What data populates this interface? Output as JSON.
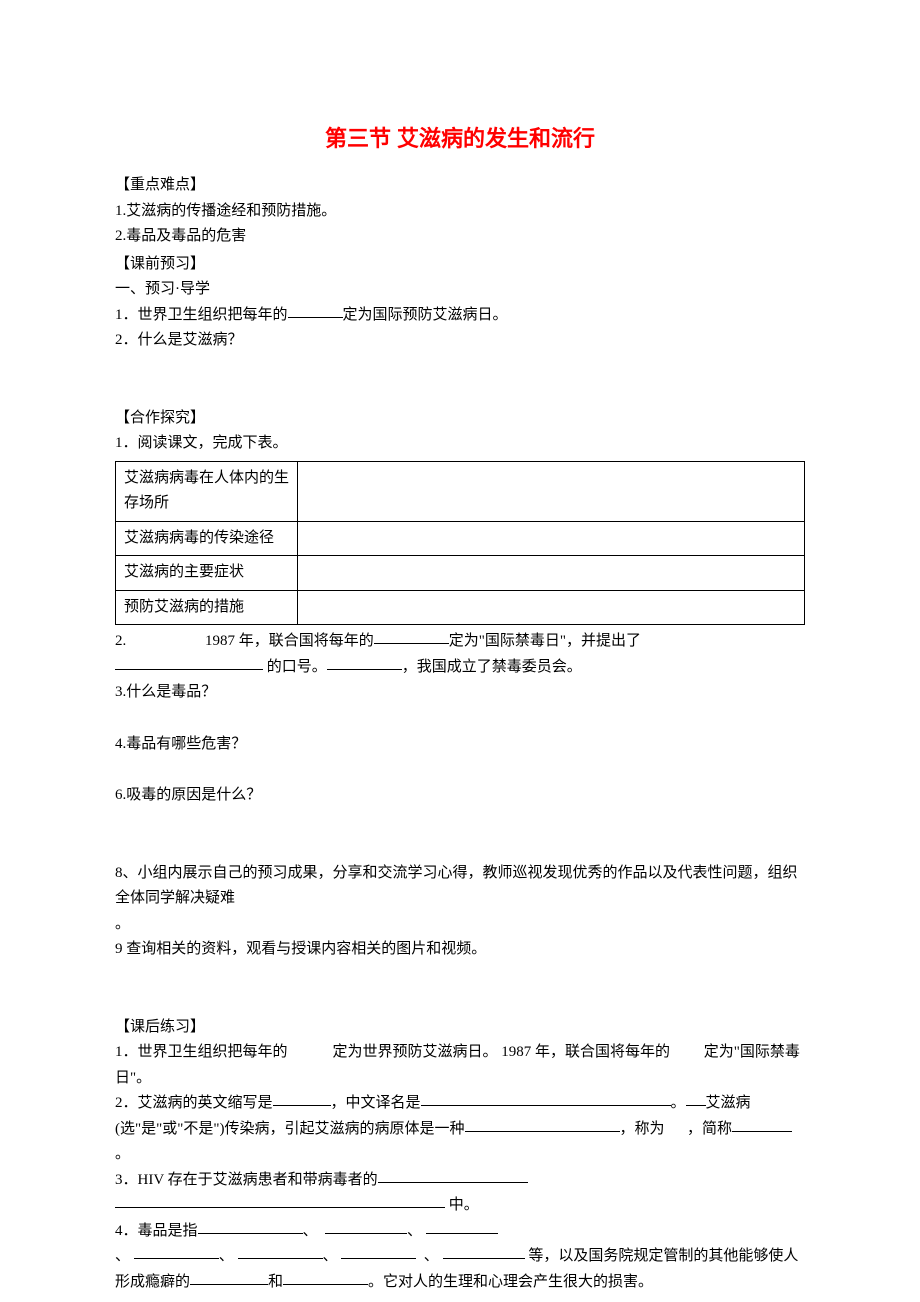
{
  "title": "第三节  艾滋病的发生和流行",
  "sections": {
    "key_points": {
      "heading": "【重点难点】",
      "items": [
        "1.艾滋病的传播途经和预防措施。",
        "2.毒品及毒品的危害"
      ]
    },
    "preview": {
      "heading": "【课前预习】",
      "subheading": "一、预习·导学",
      "q1_pre": "1．世界卫生组织把每年的",
      "q1_post": "定为国际预防艾滋病日。",
      "q2": "2．什么是艾滋病？"
    },
    "cooperative": {
      "heading": "【合作探究】",
      "q1": "1．阅读课文，完成下表。",
      "table_rows": [
        "艾滋病病毒在人体内的生存场所",
        "艾滋病病毒的传染途径",
        "艾滋病的主要症状",
        "预防艾滋病的措施"
      ],
      "q2_pre": "2.",
      "q2_mid1": "1987 年，联合国将每年的",
      "q2_mid2": "定为\"国际禁毒日\"，并提出了",
      "q2_mid3": "的口号。",
      "q2_post": "，我国成立了禁毒委员会。",
      "q3": "3.什么是毒品？",
      "q4": "4.毒品有哪些危害？",
      "q6": "6.吸毒的原因是什么？",
      "q8": "8、小组内展示自己的预习成果，分享和交流学习心得，教师巡视发现优秀的作品以及代表性问题，组织全体同学解决疑难",
      "q8_period": "。",
      "q9": "9 查询相关的资料，观看与授课内容相关的图片和视频。"
    },
    "practice": {
      "heading": "【课后练习】",
      "p1_a": "1．世界卫生组织把每年的",
      "p1_b": "定为世界预防艾滋病日。 1987 年，联合国将每年的",
      "p1_c": "定为\"国际禁毒日\"。",
      "p2_a": "2．艾滋病的英文缩写是",
      "p2_b": "，中文译名是",
      "p2_c": "。",
      "p2_d": "艾滋病",
      "p2_e": "(选\"是\"或\"不是\")传染病，引起艾滋病的病原体是一种",
      "p2_f": "，称为",
      "p2_g": "，简称",
      "p2_h": "。",
      "p3_a": "3．HIV 存在于艾滋病患者和带病毒者的",
      "p3_b": "中。",
      "p4_a": "4．毒品是指",
      "p4_b": "、",
      "p4_c": "、",
      "p4_d": "、",
      "p4_e": "、",
      "p4_f": "、",
      "p4_g": "、",
      "p4_h": " 等，以及国务院规定管制的其他能够使人形成瘾癖的",
      "p4_i": "和",
      "p4_j": "。它对人的生理和心理会产生很大的损害。"
    }
  },
  "blanks": {
    "preview_q1": 55,
    "coop_q2_a": 75,
    "coop_q2_b": 148,
    "coop_q2_c": 75,
    "practice_p1_a": 90,
    "practice_p1_b": 72,
    "practice_p2_a": 58,
    "practice_p2_b": 250,
    "practice_p2_c": 20,
    "practice_p2_e": 155,
    "practice_p2_g": 60,
    "practice_p3_a": 150,
    "practice_p3_b": 330,
    "practice_p4_a": 105,
    "practice_p4_b": 82,
    "practice_p4_c": 72,
    "practice_p4_d": 85,
    "practice_p4_e": 85,
    "practice_p4_f": 75,
    "practice_p4_g": 82,
    "practice_p4_h": 78,
    "practice_p4_i": 85
  }
}
